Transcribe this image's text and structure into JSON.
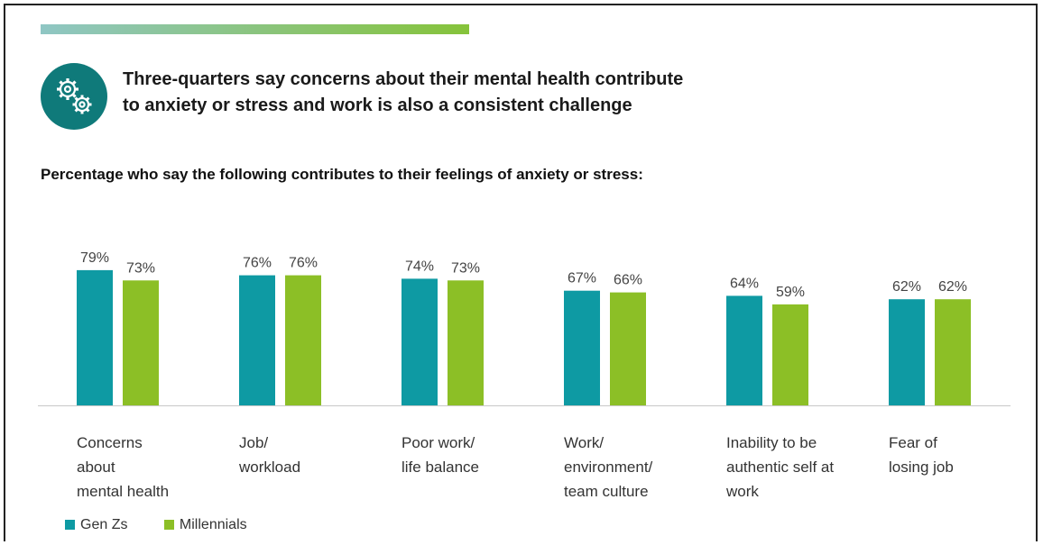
{
  "headline": {
    "line1": "Three-quarters say concerns about their mental health contribute",
    "line2": "to anxiety or stress and work is also a consistent challenge"
  },
  "colors": {
    "teal": "#0e9aa3",
    "green": "#8cbf26",
    "icon_bg": "#0f7a7a"
  },
  "icon": "gears-icon",
  "chart_data": {
    "type": "bar",
    "title": "Percentage who say the following contributes to their feelings of anxiety or stress:",
    "categories": [
      [
        "Concerns",
        "about",
        "mental health"
      ],
      [
        "Job/",
        "workload"
      ],
      [
        "Poor work/",
        "life balance"
      ],
      [
        "Work/",
        "environment/",
        "team culture"
      ],
      [
        "Inability to be",
        "authentic self at",
        "work"
      ],
      [
        "Fear of",
        "losing job"
      ]
    ],
    "series": [
      {
        "name": "Gen Zs",
        "color": "#0e9aa3",
        "values": [
          79,
          76,
          74,
          67,
          64,
          62
        ],
        "labels": [
          "79%",
          "76%",
          "74%",
          "67%",
          "64%",
          "62%"
        ]
      },
      {
        "name": "Millennials",
        "color": "#8cbf26",
        "values": [
          73,
          76,
          73,
          66,
          59,
          62
        ],
        "labels": [
          "73%",
          "76%",
          "73%",
          "66%",
          "59%",
          "62%"
        ]
      }
    ],
    "ylim": [
      0,
      100
    ],
    "grid": false,
    "legend_position": "bottom-left"
  }
}
